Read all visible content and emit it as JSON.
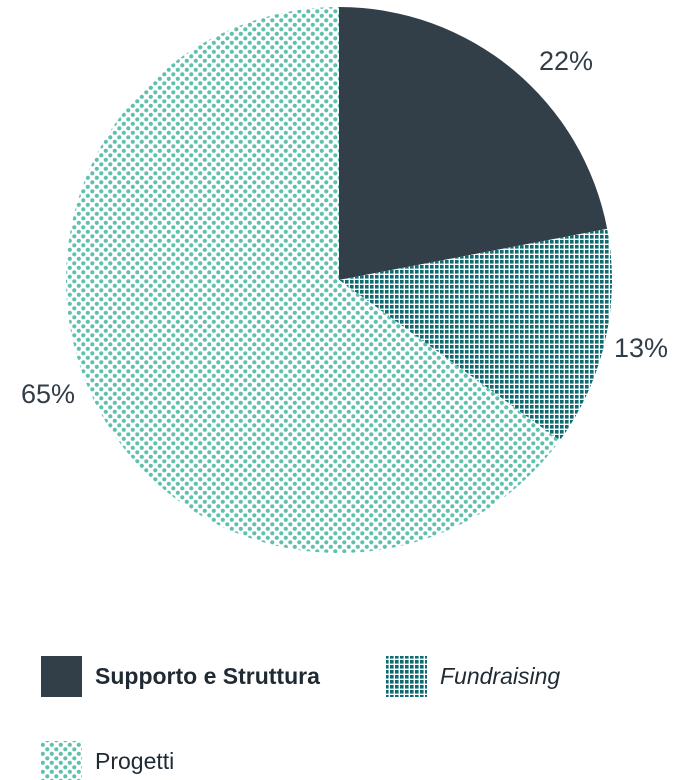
{
  "chart_data": {
    "type": "pie",
    "title": "",
    "slices": [
      {
        "name": "Supporto e Struttura",
        "value": 22,
        "label": "22%",
        "color": "#333f48",
        "pattern": "solid"
      },
      {
        "name": "Fundraising",
        "value": 13,
        "label": "13%",
        "color": "#0e6b72",
        "pattern": "grid"
      },
      {
        "name": "Progetti",
        "value": 65,
        "label": "65%",
        "color": "#5ec0ad",
        "pattern": "dots"
      }
    ],
    "legend": {
      "placement": "bottom",
      "items": [
        {
          "name": "Supporto e Struttura",
          "style": "bold"
        },
        {
          "name": "Fundraising",
          "style": "italic"
        },
        {
          "name": "Progetti",
          "style": "normal"
        }
      ]
    }
  }
}
